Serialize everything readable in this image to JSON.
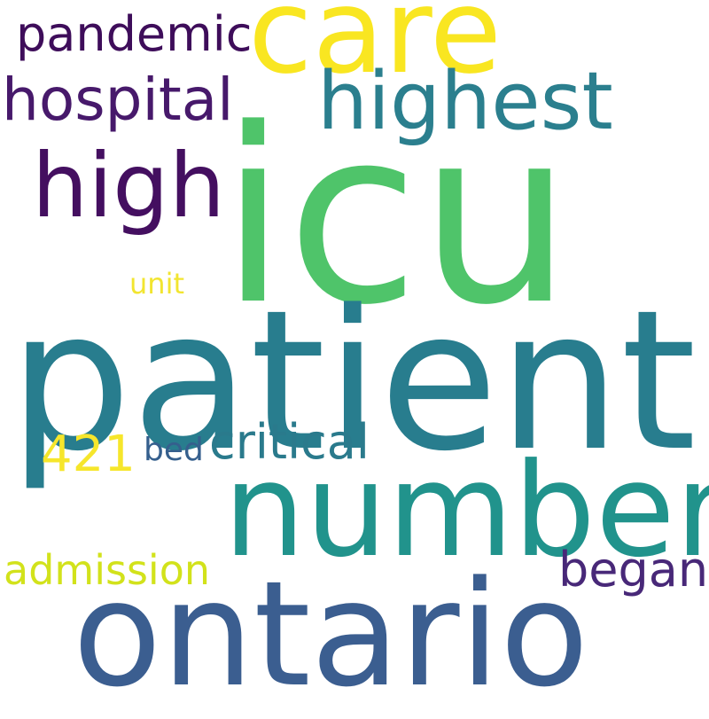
{
  "words": [
    {
      "id": "icu",
      "text": "icu",
      "color": "#4fc46a"
    },
    {
      "id": "patient",
      "text": "patient",
      "color": "#287d8e"
    },
    {
      "id": "ontario",
      "text": "ontario",
      "color": "#3b5e90"
    },
    {
      "id": "number",
      "text": "number",
      "color": "#21938c"
    },
    {
      "id": "care",
      "text": "care",
      "color": "#f9e621"
    },
    {
      "id": "highest",
      "text": "highest",
      "color": "#2b7f8e"
    },
    {
      "id": "high",
      "text": "high",
      "color": "#440f60"
    },
    {
      "id": "hospital",
      "text": "hospital",
      "color": "#47196b"
    },
    {
      "id": "pandemic",
      "text": "pandemic",
      "color": "#3e0d5a"
    },
    {
      "id": "critical",
      "text": "critical",
      "color": "#2a7a8c"
    },
    {
      "id": "began",
      "text": "began",
      "color": "#482878"
    },
    {
      "id": "admission",
      "text": "admission",
      "color": "#d2e21b"
    },
    {
      "id": "421",
      "text": "421",
      "color": "#f6e62b"
    },
    {
      "id": "bed",
      "text": "bed",
      "color": "#355f8d"
    },
    {
      "id": "unit",
      "text": "unit",
      "color": "#f2e530"
    }
  ]
}
